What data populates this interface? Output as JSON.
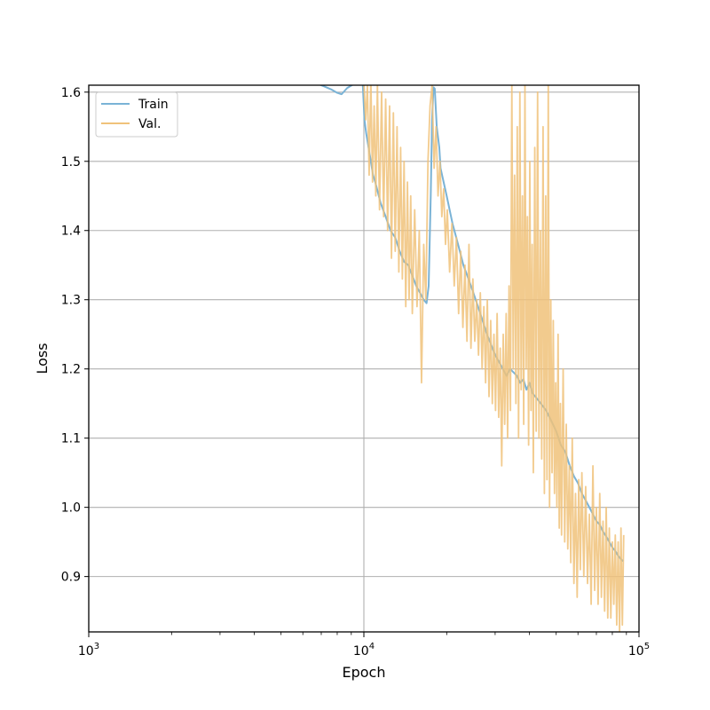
{
  "chart_data": {
    "type": "line",
    "title": "",
    "xlabel": "Epoch",
    "ylabel": "Loss",
    "x_scale": "log",
    "xlim": [
      1000,
      100000
    ],
    "ylim": [
      0.82,
      1.61
    ],
    "x_ticks": [
      {
        "value": 1000,
        "base": "10",
        "exp": "3"
      },
      {
        "value": 10000,
        "base": "10",
        "exp": "4"
      },
      {
        "value": 100000,
        "base": "10",
        "exp": "5"
      }
    ],
    "y_ticks": [
      {
        "value": 0.9,
        "label": "0.9"
      },
      {
        "value": 1.0,
        "label": "1.0"
      },
      {
        "value": 1.1,
        "label": "1.1"
      },
      {
        "value": 1.2,
        "label": "1.2"
      },
      {
        "value": 1.3,
        "label": "1.3"
      },
      {
        "value": 1.4,
        "label": "1.4"
      },
      {
        "value": 1.5,
        "label": "1.5"
      },
      {
        "value": 1.6,
        "label": "1.6"
      }
    ],
    "grid": true,
    "legend_position": "top-left",
    "series": [
      {
        "name": "Train",
        "color": "#7ab3d6",
        "points": [
          [
            6800,
            1.612
          ],
          [
            7200,
            1.608
          ],
          [
            7600,
            1.604
          ],
          [
            8000,
            1.599
          ],
          [
            8300,
            1.597
          ],
          [
            8700,
            1.606
          ],
          [
            9400,
            1.614
          ],
          [
            9900,
            1.614
          ],
          [
            10050,
            1.56
          ],
          [
            10200,
            1.54
          ],
          [
            10500,
            1.51
          ],
          [
            10800,
            1.48
          ],
          [
            11000,
            1.47
          ],
          [
            11500,
            1.44
          ],
          [
            12000,
            1.42
          ],
          [
            12500,
            1.4
          ],
          [
            13000,
            1.39
          ],
          [
            13500,
            1.37
          ],
          [
            14000,
            1.355
          ],
          [
            14500,
            1.35
          ],
          [
            15000,
            1.335
          ],
          [
            15500,
            1.32
          ],
          [
            16000,
            1.31
          ],
          [
            16500,
            1.3
          ],
          [
            16900,
            1.295
          ],
          [
            17200,
            1.32
          ],
          [
            17500,
            1.45
          ],
          [
            17700,
            1.56
          ],
          [
            17900,
            1.607
          ],
          [
            18100,
            1.605
          ],
          [
            18400,
            1.55
          ],
          [
            18800,
            1.52
          ],
          [
            19000,
            1.49
          ],
          [
            20000,
            1.45
          ],
          [
            21000,
            1.41
          ],
          [
            22000,
            1.38
          ],
          [
            23000,
            1.35
          ],
          [
            24000,
            1.33
          ],
          [
            25000,
            1.31
          ],
          [
            26000,
            1.29
          ],
          [
            27000,
            1.27
          ],
          [
            28000,
            1.25
          ],
          [
            29000,
            1.235
          ],
          [
            30000,
            1.22
          ],
          [
            31000,
            1.21
          ],
          [
            32000,
            1.2
          ],
          [
            33000,
            1.19
          ],
          [
            34000,
            1.2
          ],
          [
            35000,
            1.195
          ],
          [
            36000,
            1.19
          ],
          [
            37000,
            1.18
          ],
          [
            38000,
            1.185
          ],
          [
            39000,
            1.17
          ],
          [
            40000,
            1.18
          ],
          [
            41000,
            1.165
          ],
          [
            42000,
            1.16
          ],
          [
            44000,
            1.15
          ],
          [
            46000,
            1.14
          ],
          [
            48000,
            1.125
          ],
          [
            50000,
            1.11
          ],
          [
            52000,
            1.09
          ],
          [
            54000,
            1.08
          ],
          [
            56000,
            1.06
          ],
          [
            58000,
            1.045
          ],
          [
            60000,
            1.035
          ],
          [
            62000,
            1.02
          ],
          [
            64000,
            1.01
          ],
          [
            66000,
            1.0
          ],
          [
            68000,
            0.99
          ],
          [
            70000,
            0.98
          ],
          [
            72000,
            0.975
          ],
          [
            74000,
            0.965
          ],
          [
            76000,
            0.958
          ],
          [
            78000,
            0.95
          ],
          [
            80000,
            0.942
          ],
          [
            82000,
            0.937
          ],
          [
            84000,
            0.93
          ],
          [
            86000,
            0.925
          ],
          [
            87500,
            0.922
          ]
        ]
      },
      {
        "name": "Val.",
        "color": "#f0c27a",
        "points": [
          [
            10000,
            1.614
          ],
          [
            10150,
            1.56
          ],
          [
            10300,
            1.61
          ],
          [
            10450,
            1.48
          ],
          [
            10600,
            1.62
          ],
          [
            10750,
            1.47
          ],
          [
            10900,
            1.58
          ],
          [
            11050,
            1.45
          ],
          [
            11200,
            1.61
          ],
          [
            11400,
            1.43
          ],
          [
            11600,
            1.6
          ],
          [
            11800,
            1.42
          ],
          [
            12000,
            1.59
          ],
          [
            12200,
            1.4
          ],
          [
            12400,
            1.58
          ],
          [
            12600,
            1.36
          ],
          [
            12800,
            1.57
          ],
          [
            13000,
            1.37
          ],
          [
            13200,
            1.55
          ],
          [
            13400,
            1.34
          ],
          [
            13600,
            1.52
          ],
          [
            13800,
            1.33
          ],
          [
            14000,
            1.5
          ],
          [
            14200,
            1.29
          ],
          [
            14400,
            1.47
          ],
          [
            14600,
            1.3
          ],
          [
            14800,
            1.45
          ],
          [
            15000,
            1.28
          ],
          [
            15300,
            1.43
          ],
          [
            15600,
            1.29
          ],
          [
            15900,
            1.4
          ],
          [
            16200,
            1.18
          ],
          [
            16500,
            1.38
          ],
          [
            16800,
            1.3
          ],
          [
            17100,
            1.5
          ],
          [
            17400,
            1.58
          ],
          [
            17700,
            1.61
          ],
          [
            18000,
            1.49
          ],
          [
            18300,
            1.55
          ],
          [
            18600,
            1.45
          ],
          [
            18900,
            1.5
          ],
          [
            19200,
            1.42
          ],
          [
            19500,
            1.46
          ],
          [
            19800,
            1.38
          ],
          [
            20100,
            1.43
          ],
          [
            20500,
            1.34
          ],
          [
            20900,
            1.41
          ],
          [
            21300,
            1.32
          ],
          [
            21700,
            1.39
          ],
          [
            22100,
            1.28
          ],
          [
            22500,
            1.37
          ],
          [
            22900,
            1.26
          ],
          [
            23300,
            1.35
          ],
          [
            23700,
            1.24
          ],
          [
            24100,
            1.38
          ],
          [
            24500,
            1.23
          ],
          [
            24900,
            1.33
          ],
          [
            25300,
            1.24
          ],
          [
            25700,
            1.3
          ],
          [
            26100,
            1.22
          ],
          [
            26500,
            1.31
          ],
          [
            26900,
            1.2
          ],
          [
            27300,
            1.29
          ],
          [
            27700,
            1.18
          ],
          [
            28100,
            1.3
          ],
          [
            28500,
            1.16
          ],
          [
            28900,
            1.27
          ],
          [
            29300,
            1.15
          ],
          [
            29700,
            1.25
          ],
          [
            30100,
            1.14
          ],
          [
            30500,
            1.28
          ],
          [
            30900,
            1.13
          ],
          [
            31300,
            1.23
          ],
          [
            31700,
            1.06
          ],
          [
            32100,
            1.25
          ],
          [
            32500,
            1.12
          ],
          [
            32900,
            1.28
          ],
          [
            33300,
            1.1
          ],
          [
            33700,
            1.32
          ],
          [
            34100,
            1.14
          ],
          [
            34500,
            1.61
          ],
          [
            34900,
            1.2
          ],
          [
            35300,
            1.48
          ],
          [
            35700,
            1.15
          ],
          [
            36100,
            1.55
          ],
          [
            36500,
            1.1
          ],
          [
            36900,
            1.6
          ],
          [
            37300,
            1.17
          ],
          [
            37700,
            1.45
          ],
          [
            38100,
            1.12
          ],
          [
            38500,
            1.61
          ],
          [
            38900,
            1.2
          ],
          [
            39300,
            1.42
          ],
          [
            39700,
            1.09
          ],
          [
            40100,
            1.5
          ],
          [
            40500,
            1.14
          ],
          [
            40900,
            1.38
          ],
          [
            41300,
            1.05
          ],
          [
            41800,
            1.52
          ],
          [
            42300,
            1.11
          ],
          [
            42800,
            1.6
          ],
          [
            43300,
            1.1
          ],
          [
            43800,
            1.4
          ],
          [
            44300,
            1.07
          ],
          [
            44800,
            1.55
          ],
          [
            45300,
            1.02
          ],
          [
            45800,
            1.45
          ],
          [
            46300,
            1.04
          ],
          [
            46800,
            1.61
          ],
          [
            47300,
            1.0
          ],
          [
            47800,
            1.3
          ],
          [
            48300,
            1.05
          ],
          [
            48800,
            1.27
          ],
          [
            49300,
            1.02
          ],
          [
            49800,
            1.18
          ],
          [
            50300,
            1.0
          ],
          [
            50800,
            1.25
          ],
          [
            51300,
            0.97
          ],
          [
            51800,
            1.15
          ],
          [
            52300,
            0.96
          ],
          [
            53000,
            1.2
          ],
          [
            53700,
            0.95
          ],
          [
            54400,
            1.12
          ],
          [
            55100,
            0.94
          ],
          [
            55800,
            1.06
          ],
          [
            56500,
            0.92
          ],
          [
            57200,
            1.1
          ],
          [
            58000,
            0.89
          ],
          [
            58800,
            1.02
          ],
          [
            59600,
            0.87
          ],
          [
            60400,
            1.04
          ],
          [
            61200,
            0.91
          ],
          [
            62000,
            1.05
          ],
          [
            63000,
            0.9
          ],
          [
            64000,
            1.03
          ],
          [
            65000,
            0.89
          ],
          [
            66000,
            0.99
          ],
          [
            67000,
            0.86
          ],
          [
            68000,
            1.06
          ],
          [
            69000,
            0.88
          ],
          [
            70000,
            1.0
          ],
          [
            71000,
            0.86
          ],
          [
            72000,
            1.02
          ],
          [
            73000,
            0.87
          ],
          [
            74000,
            0.98
          ],
          [
            75000,
            0.85
          ],
          [
            76000,
            1.0
          ],
          [
            77000,
            0.84
          ],
          [
            78000,
            0.97
          ],
          [
            79000,
            0.84
          ],
          [
            80000,
            0.95
          ],
          [
            81000,
            0.86
          ],
          [
            82000,
            0.96
          ],
          [
            83000,
            0.83
          ],
          [
            84000,
            0.95
          ],
          [
            85000,
            0.82
          ],
          [
            86000,
            0.97
          ],
          [
            87000,
            0.83
          ],
          [
            88000,
            0.96
          ]
        ]
      }
    ]
  }
}
